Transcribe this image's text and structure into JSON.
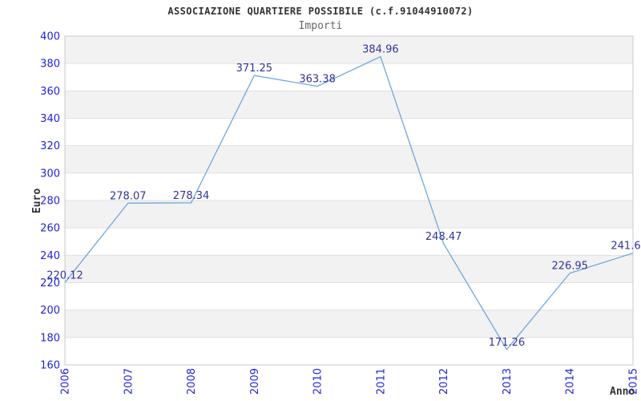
{
  "header": {
    "title": "ASSOCIAZIONE QUARTIERE POSSIBILE (c.f.91044910072)",
    "subtitle": "Importi"
  },
  "chart_data": {
    "type": "line",
    "title": "ASSOCIAZIONE QUARTIERE POSSIBILE (c.f.91044910072)",
    "subtitle": "Importi",
    "xlabel": "Anno",
    "ylabel": "Euro",
    "categories": [
      "2006",
      "2007",
      "2008",
      "2009",
      "2010",
      "2011",
      "2012",
      "2013",
      "2014",
      "2015"
    ],
    "values": [
      220.12,
      278.07,
      278.34,
      371.25,
      363.38,
      384.96,
      248.47,
      171.26,
      226.95,
      241.6
    ],
    "point_labels": [
      "220.12",
      "278.07",
      "278.34",
      "371.25",
      "363.38",
      "384.96",
      "248.47",
      "171.26",
      "226.95",
      "241.6"
    ],
    "ylim": [
      160,
      400
    ],
    "ytick_step": 20,
    "ytick_values": [
      400,
      380,
      360,
      340,
      320,
      300,
      280,
      260,
      240,
      220,
      200,
      180,
      160
    ],
    "grid": "horizontal gridlines with alternating shaded bands",
    "legend": "none",
    "colors": {
      "line": "#6fa8dc",
      "point_label": "#333399",
      "tick_label": "#2222dd",
      "band": "#f2f2f2",
      "background": "#ffffff",
      "gridline": "#e0e0e0",
      "border": "#c9c9c9",
      "title": "#333333",
      "axis_title": "#333333"
    }
  }
}
